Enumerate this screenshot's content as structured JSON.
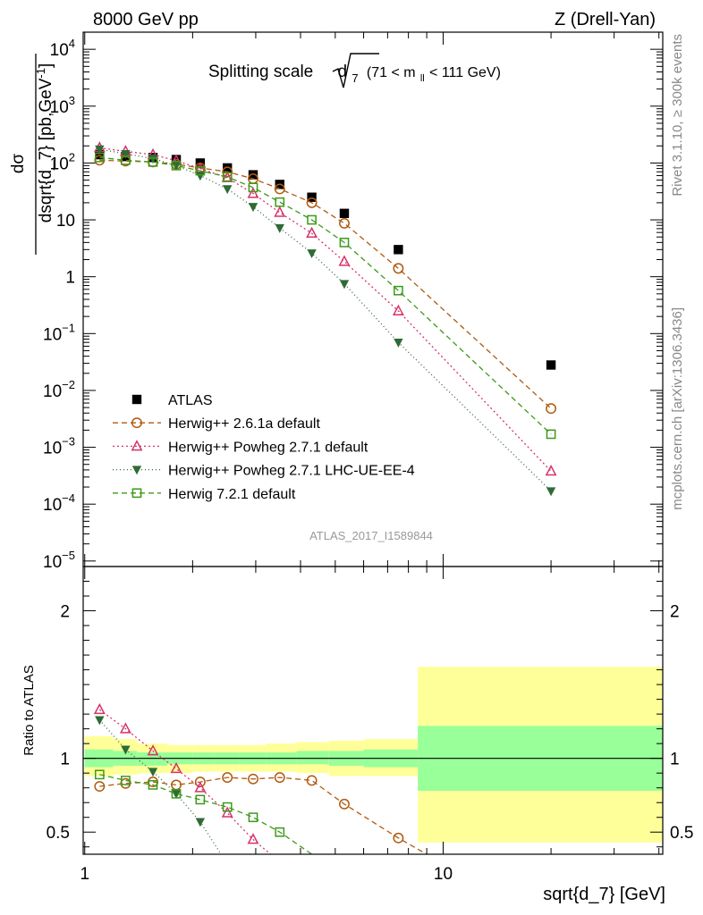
{
  "header": {
    "left": "8000 GeV pp",
    "right": "Z (Drell-Yan)"
  },
  "side": {
    "rivet": "Rivet 3.1.10, ≥ 300k events",
    "mcplots": "mcplots.cern.ch [arXiv:1306.3436]"
  },
  "watermark": "ATLAS_2017_I1589844",
  "chart_data": [
    {
      "type": "scatter",
      "title": "Splitting scale √d₇ (71 < m_ll < 111 GeV)",
      "title_main": "Splitting scale",
      "title_sym": "d",
      "title_sub": "7",
      "title_range_a": "(71 < m",
      "title_range_sub": "ll",
      "title_range_b": " < 111 GeV)",
      "xscale": "log",
      "yscale": "log",
      "xlim": [
        0.99,
        41
      ],
      "ylim": [
        8e-06,
        20000
      ],
      "ylabel": "dσ / dsqrt{d_7} [pb,GeV⁻¹]",
      "ylabel_num": "dσ",
      "ylabel_den": "dsqrt{d_7} [pb,GeV",
      "ylabel_exp": "-1",
      "ylabel_end": "]",
      "yticks": [
        {
          "v": 1e-05,
          "base": "10",
          "exp": "−5"
        },
        {
          "v": 0.0001,
          "base": "10",
          "exp": "−4"
        },
        {
          "v": 0.001,
          "base": "10",
          "exp": "−3"
        },
        {
          "v": 0.01,
          "base": "10",
          "exp": "−2"
        },
        {
          "v": 0.1,
          "base": "10",
          "exp": "−1"
        },
        {
          "v": 1,
          "base": "1",
          "exp": ""
        },
        {
          "v": 10,
          "base": "10",
          "exp": ""
        },
        {
          "v": 100,
          "base": "10",
          "exp": "2"
        },
        {
          "v": 1000,
          "base": "10",
          "exp": "3"
        },
        {
          "v": 10000,
          "base": "10",
          "exp": "4"
        }
      ],
      "legend_position": "bottom-left",
      "series": [
        {
          "name": "ATLAS",
          "color": "#000000",
          "marker": "square-filled",
          "dash": "none",
          "x": [
            1.1,
            1.3,
            1.55,
            1.8,
            2.1,
            2.5,
            2.95,
            3.5,
            4.3,
            5.3,
            7.5,
            20.0
          ],
          "y": [
            140,
            130,
            125,
            115,
            100,
            82,
            62,
            42,
            25,
            13,
            3,
            0.028
          ]
        },
        {
          "name": "Herwig++ 2.6.1a default",
          "color": "#b05a10",
          "marker": "circle-open",
          "dash": "6,4",
          "x": [
            1.1,
            1.3,
            1.55,
            1.8,
            2.1,
            2.5,
            2.95,
            3.5,
            4.3,
            5.3,
            7.5,
            20.0
          ],
          "y": [
            112,
            108,
            104,
            95,
            82,
            70,
            53,
            35,
            20,
            8.7,
            1.4,
            0.0048
          ]
        },
        {
          "name": "Herwig++ Powheg 2.7.1 default",
          "color": "#d6336c",
          "marker": "triangle-up-open",
          "dash": "2,3",
          "x": [
            1.1,
            1.3,
            1.55,
            1.8,
            2.1,
            2.5,
            2.95,
            3.5,
            4.3,
            5.3,
            7.5,
            20.0
          ],
          "y": [
            185,
            160,
            140,
            110,
            80,
            55,
            29,
            13.5,
            5.8,
            1.85,
            0.25,
            0.00038
          ]
        },
        {
          "name": "Herwig++ Powheg 2.7.1 LHC-UE-EE-4",
          "color": "#2e6b35",
          "marker": "triangle-down-filled",
          "dash": "1,3",
          "x": [
            1.1,
            1.3,
            1.55,
            1.8,
            2.1,
            2.5,
            2.95,
            3.5,
            4.3,
            5.3,
            7.5,
            20.0
          ],
          "y": [
            175,
            145,
            120,
            90,
            60,
            35,
            17,
            7.2,
            2.6,
            0.75,
            0.07,
            0.00017
          ]
        },
        {
          "name": "Herwig 7.2.1 default",
          "color": "#3c9a1a",
          "marker": "square-open",
          "dash": "6,4",
          "x": [
            1.1,
            1.3,
            1.55,
            1.8,
            2.1,
            2.5,
            2.95,
            3.5,
            4.3,
            5.3,
            7.5,
            20.0
          ],
          "y": [
            125,
            112,
            104,
            90,
            73,
            57,
            37,
            20.5,
            10,
            4,
            0.57,
            0.0017
          ]
        }
      ]
    },
    {
      "type": "scatter",
      "title": "",
      "xscale": "log",
      "yscale": "linear",
      "xlim": [
        0.99,
        41
      ],
      "ylim": [
        0.35,
        2.3
      ],
      "xlabel": "sqrt{d_7} [GeV]",
      "ylabel": "Ratio to ATLAS",
      "xticks_labeled": [
        {
          "v": 1,
          "label": "1"
        },
        {
          "v": 10,
          "label": "10"
        }
      ],
      "yticks_labeled": [
        {
          "v": 0.5,
          "label": "0.5"
        },
        {
          "v": 1,
          "label": "1"
        },
        {
          "v": 2,
          "label": "2"
        }
      ],
      "bands": [
        {
          "x0": 1.0,
          "x1": 1.2,
          "stat": [
            0.94,
            1.06
          ],
          "total": [
            0.88,
            1.15
          ]
        },
        {
          "x0": 1.2,
          "x1": 1.4,
          "stat": [
            0.95,
            1.05
          ],
          "total": [
            0.89,
            1.13
          ]
        },
        {
          "x0": 1.4,
          "x1": 1.7,
          "stat": [
            0.95,
            1.04
          ],
          "total": [
            0.9,
            1.1
          ]
        },
        {
          "x0": 1.7,
          "x1": 2.0,
          "stat": [
            0.96,
            1.04
          ],
          "total": [
            0.9,
            1.09
          ]
        },
        {
          "x0": 2.0,
          "x1": 2.3,
          "stat": [
            0.96,
            1.04
          ],
          "total": [
            0.91,
            1.09
          ]
        },
        {
          "x0": 2.3,
          "x1": 2.7,
          "stat": [
            0.96,
            1.04
          ],
          "total": [
            0.91,
            1.09
          ]
        },
        {
          "x0": 2.7,
          "x1": 3.2,
          "stat": [
            0.96,
            1.04
          ],
          "total": [
            0.91,
            1.09
          ]
        },
        {
          "x0": 3.2,
          "x1": 3.9,
          "stat": [
            0.96,
            1.04
          ],
          "total": [
            0.91,
            1.1
          ]
        },
        {
          "x0": 3.9,
          "x1": 4.8,
          "stat": [
            0.96,
            1.05
          ],
          "total": [
            0.9,
            1.11
          ]
        },
        {
          "x0": 4.8,
          "x1": 6.0,
          "stat": [
            0.95,
            1.05
          ],
          "total": [
            0.88,
            1.12
          ]
        },
        {
          "x0": 6.0,
          "x1": 8.5,
          "stat": [
            0.94,
            1.06
          ],
          "total": [
            0.88,
            1.13
          ]
        },
        {
          "x0": 8.5,
          "x1": 41.0,
          "stat": [
            0.78,
            1.22
          ],
          "total": [
            0.43,
            1.62
          ]
        }
      ],
      "series": [
        {
          "name": "Herwig++ 2.6.1a default",
          "color": "#b05a10",
          "marker": "circle-open",
          "dash": "6,4",
          "x": [
            1.1,
            1.3,
            1.55,
            1.8,
            2.1,
            2.5,
            2.95,
            3.5,
            4.3,
            5.3,
            7.5,
            9.0
          ],
          "y": [
            0.81,
            0.83,
            0.84,
            0.82,
            0.84,
            0.87,
            0.86,
            0.87,
            0.85,
            0.69,
            0.46,
            0.35
          ]
        },
        {
          "name": "Herwig++ Powheg 2.7.1 default",
          "color": "#d6336c",
          "marker": "triangle-up-open",
          "dash": "2,3",
          "x": [
            1.1,
            1.3,
            1.55,
            1.8,
            2.1,
            2.5,
            2.95,
            3.3
          ],
          "y": [
            1.33,
            1.2,
            1.05,
            0.93,
            0.8,
            0.63,
            0.45,
            0.35
          ]
        },
        {
          "name": "Herwig++ Powheg 2.7.1 LHC-UE-EE-4",
          "color": "#2e6b35",
          "marker": "triangle-down-filled",
          "dash": "1,3",
          "x": [
            1.1,
            1.3,
            1.55,
            1.8,
            2.1,
            2.4
          ],
          "y": [
            1.26,
            1.06,
            0.91,
            0.76,
            0.57,
            0.35
          ]
        },
        {
          "name": "Herwig 7.2.1 default",
          "color": "#3c9a1a",
          "marker": "square-open",
          "dash": "6,4",
          "x": [
            1.1,
            1.3,
            1.55,
            1.8,
            2.1,
            2.5,
            2.95,
            3.5,
            4.3
          ],
          "y": [
            0.89,
            0.85,
            0.82,
            0.76,
            0.72,
            0.67,
            0.6,
            0.5,
            0.35
          ]
        }
      ]
    }
  ]
}
